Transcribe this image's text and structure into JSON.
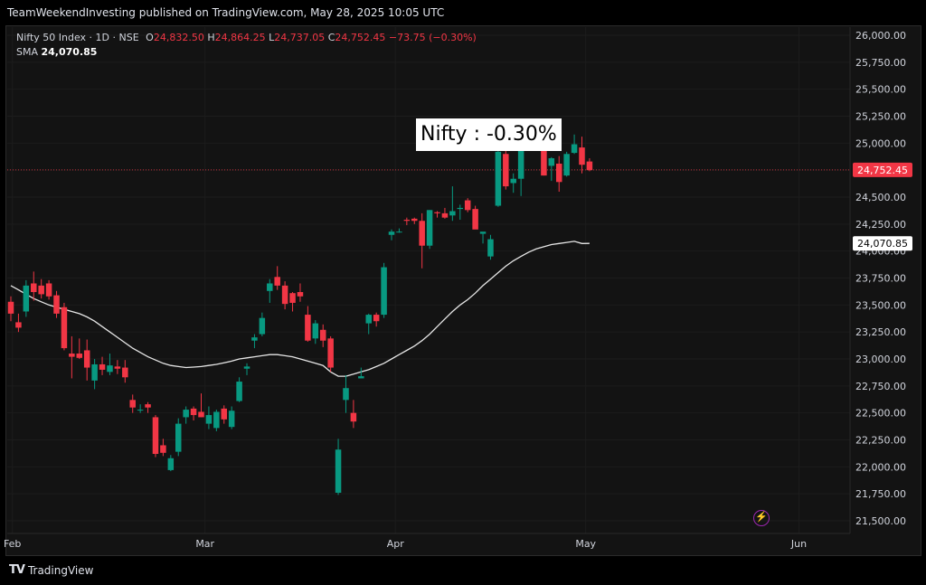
{
  "header": {
    "publisher_line": "TeamWeekendInvesting published on TradingView.com, May 28, 2025 10:05 UTC"
  },
  "legend": {
    "symbol": "Nifty 50 Index · 1D · NSE",
    "o_label": "O",
    "o_value": "24,832.50",
    "h_label": "H",
    "h_value": "24,864.25",
    "l_label": "L",
    "l_value": "24,737.05",
    "c_label": "C",
    "c_value": "24,752.45",
    "change": "−73.75 (−0.30%)",
    "sma_label": "SMA",
    "sma_value": "24,070.85"
  },
  "callout": "Nifty : -0.30%",
  "footer": {
    "brand": "TradingView"
  },
  "colors": {
    "up": "#089981",
    "down": "#f23645",
    "sma": "#e6e6e6",
    "background": "#131313"
  },
  "chart_data": {
    "type": "candlestick",
    "ylim": [
      21500,
      26000
    ],
    "y_ticks": [
      21500,
      21750,
      22000,
      22250,
      22500,
      22750,
      23000,
      23250,
      23500,
      23750,
      24000,
      24250,
      24500,
      24750,
      25000,
      25250,
      25500,
      25750,
      26000
    ],
    "y_tick_labels": [
      "21,500.00",
      "21,750.00",
      "22,000.00",
      "22,250.00",
      "22,500.00",
      "22,750.00",
      "23,000.00",
      "23,250.00",
      "23,500.00",
      "23,750.00",
      "24,000.00",
      "24,250.00",
      "24,500.00",
      "24,750.00",
      "25,000.00",
      "25,250.00",
      "25,500.00",
      "25,750.00",
      "26,000.00"
    ],
    "x_labels": [
      {
        "text": "Feb",
        "index": 0.2
      },
      {
        "text": "Mar",
        "index": 25.5
      },
      {
        "text": "Apr",
        "index": 50.5
      },
      {
        "text": "May",
        "index": 75.5
      },
      {
        "text": "Jun",
        "index": 103.5
      }
    ],
    "last_price": {
      "value": 24752.45,
      "label": "24,752.45"
    },
    "sma_price": {
      "value": 24070.85,
      "label": "24,070.85"
    },
    "candles": [
      [
        23530,
        23580,
        23350,
        23420
      ],
      [
        23340,
        23420,
        23250,
        23290
      ],
      [
        23440,
        23730,
        23390,
        23680
      ],
      [
        23700,
        23810,
        23540,
        23620
      ],
      [
        23680,
        23740,
        23560,
        23600
      ],
      [
        23700,
        23730,
        23550,
        23580
      ],
      [
        23590,
        23630,
        23380,
        23420
      ],
      [
        23480,
        23520,
        23080,
        23100
      ],
      [
        23050,
        23210,
        22820,
        23020
      ],
      [
        23050,
        23190,
        23000,
        23010
      ],
      [
        23080,
        23180,
        22800,
        22920
      ],
      [
        22800,
        23000,
        22720,
        22950
      ],
      [
        22950,
        23020,
        22850,
        22900
      ],
      [
        22880,
        23050,
        22850,
        22940
      ],
      [
        22930,
        22990,
        22860,
        22910
      ],
      [
        22920,
        22990,
        22780,
        22830
      ],
      [
        22620,
        22670,
        22500,
        22550
      ],
      [
        22530,
        22580,
        22500,
        22530
      ],
      [
        22580,
        22600,
        22500,
        22550
      ],
      [
        22460,
        22480,
        22090,
        22120
      ],
      [
        22200,
        22260,
        22100,
        22130
      ],
      [
        21970,
        22110,
        21960,
        22080
      ],
      [
        22140,
        22450,
        22100,
        22400
      ],
      [
        22460,
        22560,
        22400,
        22530
      ],
      [
        22540,
        22560,
        22430,
        22480
      ],
      [
        22510,
        22680,
        22460,
        22460
      ],
      [
        22400,
        22560,
        22350,
        22480
      ],
      [
        22360,
        22530,
        22330,
        22510
      ],
      [
        22540,
        22570,
        22400,
        22440
      ],
      [
        22370,
        22560,
        22350,
        22520
      ],
      [
        22610,
        22830,
        22600,
        22790
      ],
      [
        22910,
        22960,
        22850,
        22930
      ],
      [
        23170,
        23230,
        23100,
        23200
      ],
      [
        23230,
        23430,
        23210,
        23380
      ],
      [
        23630,
        23740,
        23520,
        23700
      ],
      [
        23760,
        23860,
        23640,
        23680
      ],
      [
        23680,
        23720,
        23460,
        23510
      ],
      [
        23610,
        23620,
        23440,
        23520
      ],
      [
        23620,
        23700,
        23530,
        23580
      ],
      [
        23410,
        23490,
        23160,
        23170
      ],
      [
        23190,
        23360,
        23140,
        23330
      ],
      [
        23270,
        23320,
        23110,
        23170
      ],
      [
        23190,
        23210,
        22880,
        22920
      ],
      [
        21760,
        22260,
        21740,
        22160
      ],
      [
        22620,
        22850,
        22500,
        22730
      ],
      [
        22500,
        22620,
        22360,
        22420
      ],
      [
        22820,
        22920,
        22820,
        22840
      ],
      [
        23330,
        23420,
        23230,
        23410
      ],
      [
        23410,
        23430,
        23300,
        23350
      ],
      [
        23410,
        23890,
        23380,
        23850
      ],
      [
        24150,
        24200,
        24100,
        24180
      ],
      [
        24180,
        24210,
        24170,
        24180
      ],
      [
        24290,
        24310,
        24240,
        24280
      ],
      [
        24300,
        24310,
        24250,
        24280
      ],
      [
        24280,
        24350,
        23840,
        24050
      ],
      [
        24050,
        24380,
        24020,
        24380
      ],
      [
        24360,
        24370,
        24310,
        24350
      ],
      [
        24350,
        24400,
        24300,
        24310
      ],
      [
        24330,
        24600,
        24280,
        24370
      ],
      [
        24390,
        24430,
        24290,
        24400
      ],
      [
        24470,
        24490,
        24360,
        24380
      ],
      [
        24390,
        24420,
        24210,
        24200
      ],
      [
        24160,
        24170,
        24070,
        24180
      ],
      [
        23950,
        24150,
        23920,
        24110
      ],
      [
        24420,
        24990,
        24410,
        24920
      ],
      [
        24900,
        24940,
        24570,
        24600
      ],
      [
        24630,
        24720,
        24540,
        24670
      ],
      [
        24670,
        25070,
        24510,
        25050
      ],
      [
        25040,
        25080,
        25000,
        25050
      ],
      [
        24980,
        25030,
        24960,
        25030
      ],
      [
        25010,
        25030,
        24700,
        24700
      ],
      [
        24790,
        24870,
        24650,
        24860
      ],
      [
        24810,
        24880,
        24550,
        24640
      ],
      [
        24700,
        24920,
        24690,
        24900
      ],
      [
        24910,
        25080,
        24900,
        24990
      ],
      [
        24960,
        25060,
        24720,
        24800
      ],
      [
        24830,
        24860,
        24740,
        24750
      ]
    ],
    "sma": [
      23680,
      23640,
      23600,
      23560,
      23530,
      23500,
      23480,
      23460,
      23440,
      23420,
      23390,
      23350,
      23300,
      23250,
      23200,
      23150,
      23100,
      23060,
      23020,
      22990,
      22960,
      22940,
      22930,
      22920,
      22925,
      22930,
      22940,
      22950,
      22965,
      22980,
      23000,
      23010,
      23020,
      23030,
      23040,
      23040,
      23030,
      23020,
      23000,
      22980,
      22960,
      22940,
      22880,
      22840,
      22840,
      22860,
      22880,
      22900,
      22930,
      22960,
      23000,
      23040,
      23080,
      23120,
      23170,
      23230,
      23300,
      23370,
      23440,
      23500,
      23550,
      23610,
      23680,
      23740,
      23800,
      23860,
      23910,
      23950,
      23990,
      24020,
      24040,
      24060,
      24070,
      24080,
      24090,
      24070,
      24071
    ]
  }
}
